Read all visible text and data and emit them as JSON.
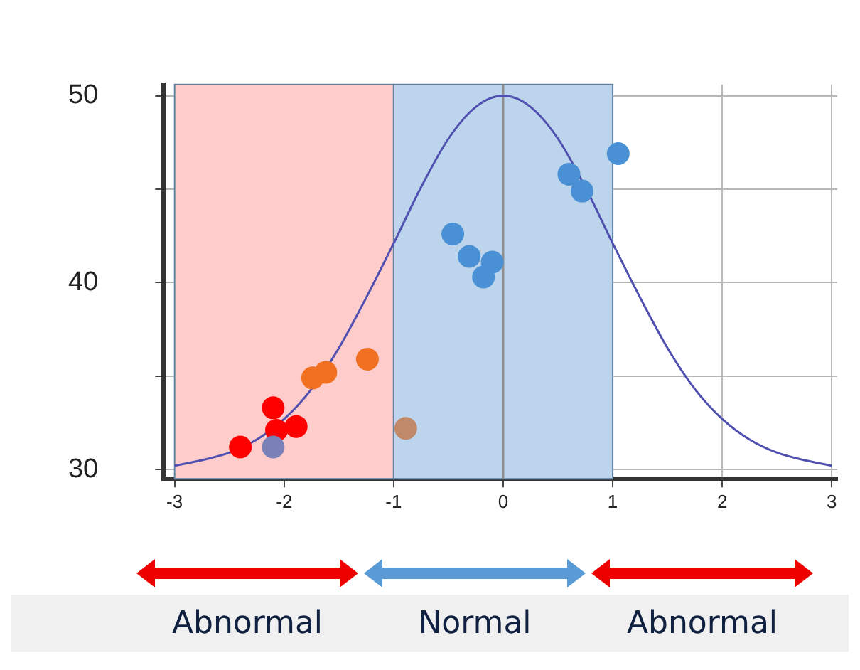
{
  "chart_data": {
    "type": "scatter",
    "series": [
      {
        "type": "line",
        "color": "#5050b0",
        "marker": "none",
        "x": [
          -3,
          -2.75,
          -2.5,
          -2.25,
          -2,
          -1.75,
          -1.5,
          -1.25,
          -1,
          -0.75,
          -0.5,
          -0.25,
          0,
          0.25,
          0.5,
          0.75,
          1,
          1.25,
          1.5,
          1.75,
          2,
          2.25,
          2.5,
          2.75,
          3
        ],
        "values": [
          30.2,
          30.5,
          30.9,
          31.6,
          32.7,
          34.3,
          36.5,
          39.2,
          42.1,
          45.1,
          47.7,
          49.4,
          50,
          49.4,
          47.7,
          45.1,
          42.1,
          39.2,
          36.5,
          34.3,
          32.7,
          31.6,
          30.9,
          30.5,
          30.2
        ]
      },
      {
        "marker": "circle",
        "x": [
          -2.4,
          -2.1,
          -2.07,
          -1.89,
          -2.1,
          -1.74,
          -1.62,
          -1.24,
          -0.89,
          -0.46,
          -0.31,
          -0.1,
          -0.18,
          0.6,
          0.72,
          1.05
        ],
        "values": [
          31.2,
          33.3,
          32.1,
          32.3,
          31.2,
          34.9,
          35.2,
          35.9,
          32.2,
          42.6,
          41.4,
          41.1,
          40.3,
          45.8,
          44.9,
          46.9
        ],
        "colors": [
          "#ff0000",
          "#ff0000",
          "#ff0000",
          "#ff0000",
          "#7a80b8",
          "#f07020",
          "#f07020",
          "#f07020",
          "#c08a6a",
          "#4a90d4",
          "#4a90d4",
          "#4a90d4",
          "#4a90d4",
          "#4a90d4",
          "#4a90d4",
          "#4a90d4"
        ]
      }
    ],
    "xlim": [
      -3.1,
      3.05
    ],
    "xticks": [
      -3,
      -2,
      -1,
      0,
      1,
      2,
      3
    ],
    "ylim": [
      29.5,
      50.6
    ],
    "yticks": [
      30,
      {
        "value": 35,
        "label": null
      },
      40,
      {
        "value": 45,
        "label": null
      },
      50
    ],
    "grid": true,
    "legend": false,
    "bands": [
      {
        "axis": "x",
        "from": -3,
        "to": -1,
        "color": "#ffcccc"
      },
      {
        "axis": "x",
        "from": -1,
        "to": 1,
        "color": "#bcd4ec"
      }
    ],
    "ref_lines": [
      {
        "axis": "x",
        "value": 0,
        "color": "#909090"
      }
    ],
    "annotations": [
      "Abnormal",
      "Normal",
      "Abnormal"
    ]
  }
}
